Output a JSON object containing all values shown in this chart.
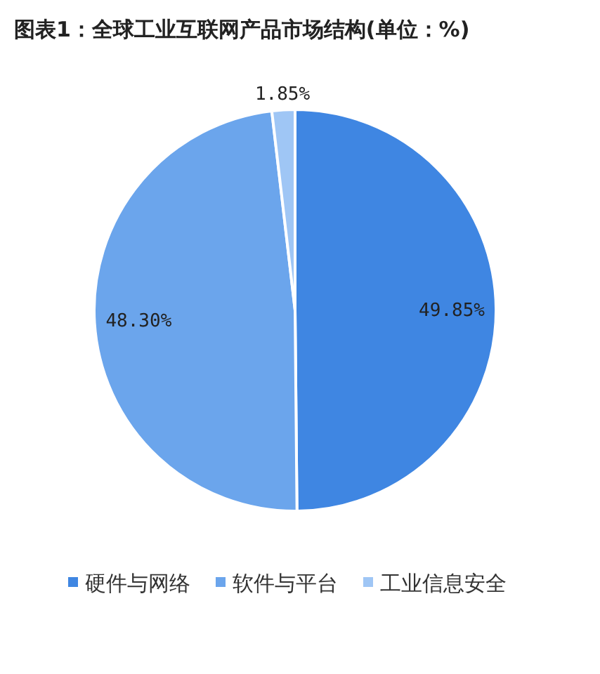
{
  "chart_data": {
    "type": "pie",
    "title": "图表1：全球工业互联网产品市场结构(单位：%)",
    "categories": [
      "硬件与网络",
      "软件与平台",
      "工业信息安全"
    ],
    "values": [
      49.85,
      48.3,
      1.85
    ],
    "colors": [
      "#3f86e2",
      "#6ba5ec",
      "#9fc6f5"
    ],
    "value_labels": [
      "49.85%",
      "48.30%",
      "1.85%"
    ],
    "legend": "bottom"
  }
}
